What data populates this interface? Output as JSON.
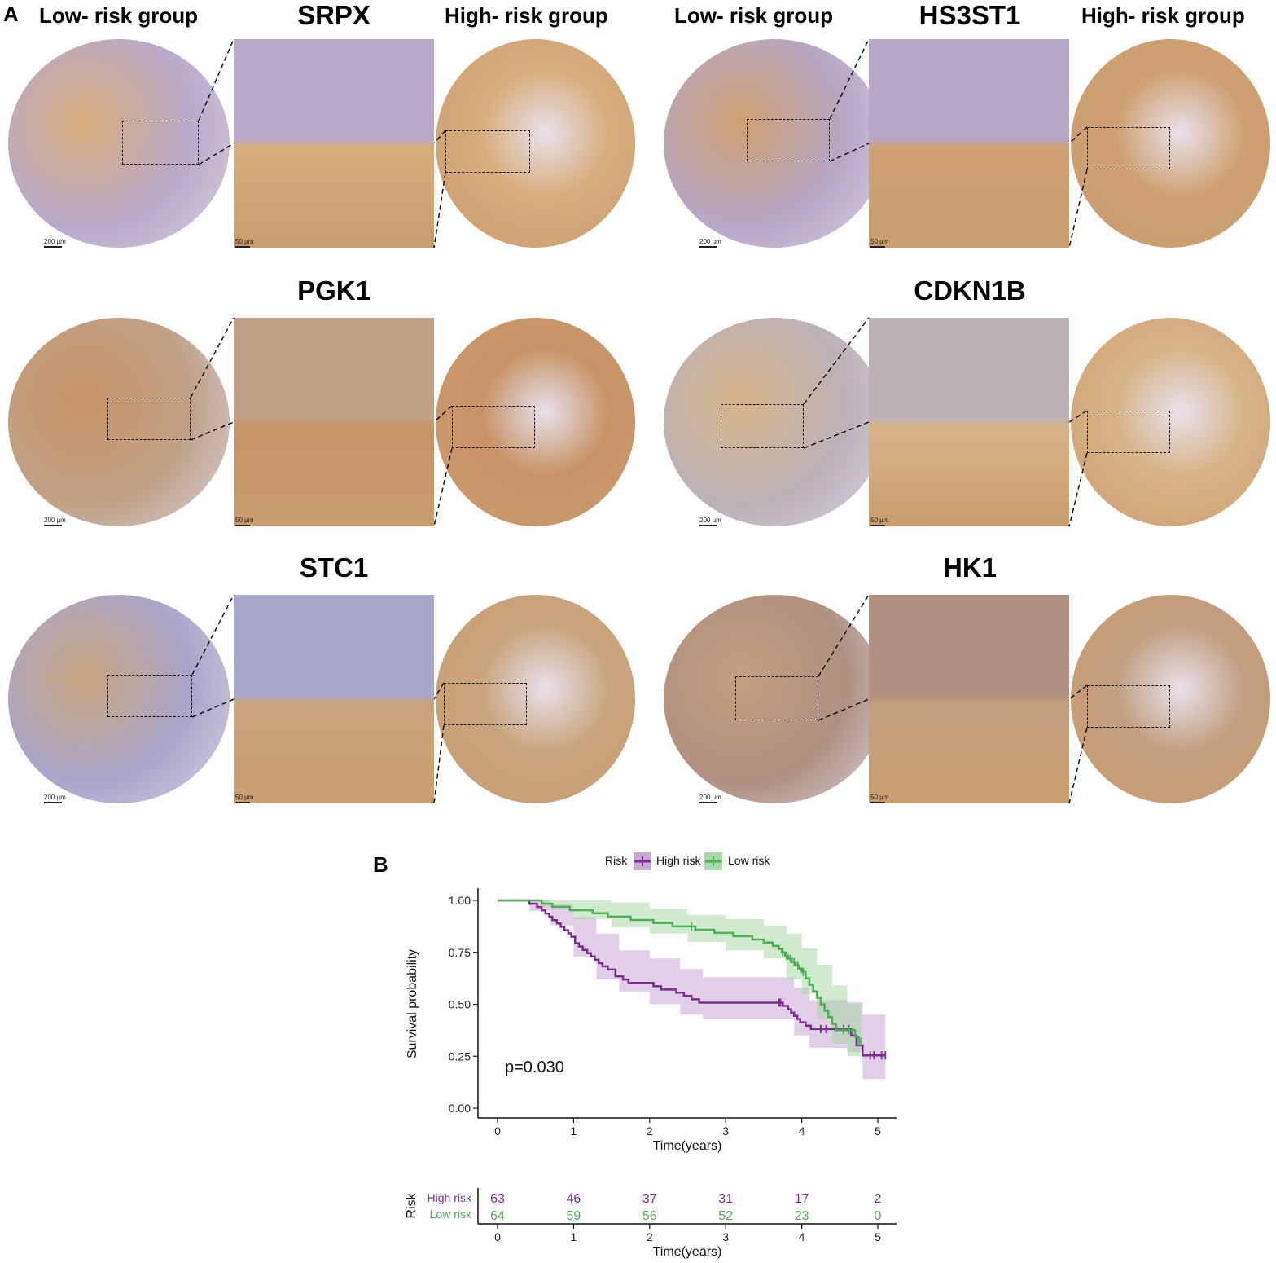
{
  "panel_a": {
    "letter": "A",
    "low_label": "Low- risk group",
    "high_label": "High- risk group",
    "genes": [
      "SRPX",
      "HS3ST1",
      "PGK1",
      "CDKN1B",
      "STC1",
      "HK1"
    ],
    "scale_low": "200 µm",
    "scale_zoom": "50 µm",
    "colors": {
      "tissue": "#c99d6e",
      "stroma": "#e8e1ec",
      "hematoxylin": "#8f94c4",
      "dab_dark": "#8a5228"
    }
  },
  "panel_b": {
    "letter": "B",
    "legend_title": "Risk",
    "pvalue_text": "p=0.030",
    "risk_table_title": "Risk"
  },
  "chart_data": {
    "type": "line",
    "subtype": "kaplan-meier",
    "xlabel": "Time(years)",
    "ylabel": "Survival probability",
    "xlim": [
      0,
      5
    ],
    "ylim": [
      0,
      1
    ],
    "x_ticks": [
      "0",
      "1",
      "2",
      "3",
      "4",
      "5"
    ],
    "y_ticks": [
      "0.00",
      "0.25",
      "0.50",
      "0.75",
      "1.00"
    ],
    "legend_position": "top",
    "series": [
      {
        "name": "High risk",
        "color": "#7b2d8e",
        "band_color": "#c9a8d4",
        "steps": [
          [
            0,
            1.0
          ],
          [
            0.42,
            0.984
          ],
          [
            0.52,
            0.968
          ],
          [
            0.58,
            0.952
          ],
          [
            0.63,
            0.937
          ],
          [
            0.68,
            0.921
          ],
          [
            0.72,
            0.905
          ],
          [
            0.78,
            0.889
          ],
          [
            0.83,
            0.873
          ],
          [
            0.88,
            0.857
          ],
          [
            0.93,
            0.841
          ],
          [
            0.97,
            0.825
          ],
          [
            1.02,
            0.794
          ],
          [
            1.07,
            0.778
          ],
          [
            1.12,
            0.762
          ],
          [
            1.18,
            0.746
          ],
          [
            1.23,
            0.73
          ],
          [
            1.28,
            0.714
          ],
          [
            1.33,
            0.698
          ],
          [
            1.38,
            0.683
          ],
          [
            1.45,
            0.667
          ],
          [
            1.55,
            0.635
          ],
          [
            1.65,
            0.619
          ],
          [
            1.72,
            0.603
          ],
          [
            2.05,
            0.587
          ],
          [
            2.15,
            0.571
          ],
          [
            2.35,
            0.556
          ],
          [
            2.45,
            0.54
          ],
          [
            2.55,
            0.524
          ],
          [
            2.65,
            0.508
          ],
          [
            3.6,
            0.508
          ],
          [
            3.75,
            0.492
          ],
          [
            3.82,
            0.476
          ],
          [
            3.86,
            0.46
          ],
          [
            3.9,
            0.444
          ],
          [
            3.94,
            0.429
          ],
          [
            3.98,
            0.413
          ],
          [
            4.05,
            0.397
          ],
          [
            4.12,
            0.381
          ],
          [
            4.6,
            0.381
          ],
          [
            4.65,
            0.349
          ],
          [
            4.72,
            0.302
          ],
          [
            4.8,
            0.254
          ],
          [
            5.1,
            0.254
          ]
        ],
        "lower": [
          [
            0,
            1.0
          ],
          [
            0.42,
            0.95
          ],
          [
            0.7,
            0.88
          ],
          [
            1.0,
            0.73
          ],
          [
            1.3,
            0.62
          ],
          [
            1.6,
            0.56
          ],
          [
            2.0,
            0.5
          ],
          [
            2.4,
            0.45
          ],
          [
            2.7,
            0.43
          ],
          [
            3.6,
            0.43
          ],
          [
            3.9,
            0.35
          ],
          [
            4.1,
            0.29
          ],
          [
            4.6,
            0.27
          ],
          [
            4.8,
            0.14
          ],
          [
            5.1,
            0.14
          ]
        ],
        "upper": [
          [
            0,
            1.0
          ],
          [
            0.42,
            1.0
          ],
          [
            0.7,
            0.98
          ],
          [
            1.0,
            0.92
          ],
          [
            1.3,
            0.84
          ],
          [
            1.6,
            0.76
          ],
          [
            2.0,
            0.72
          ],
          [
            2.4,
            0.67
          ],
          [
            2.7,
            0.63
          ],
          [
            3.6,
            0.63
          ],
          [
            3.9,
            0.58
          ],
          [
            4.1,
            0.52
          ],
          [
            4.6,
            0.51
          ],
          [
            4.8,
            0.45
          ],
          [
            5.1,
            0.45
          ]
        ],
        "censor": [
          3.7,
          3.72,
          4.25,
          4.32,
          4.55,
          4.62,
          4.9,
          4.95,
          5.05,
          5.1
        ],
        "at_risk": [
          63,
          46,
          37,
          31,
          17,
          2
        ]
      },
      {
        "name": "Low risk",
        "color": "#4caf50",
        "band_color": "#a8d8a8",
        "steps": [
          [
            0,
            1.0
          ],
          [
            0.58,
            0.984
          ],
          [
            0.72,
            0.969
          ],
          [
            0.95,
            0.953
          ],
          [
            1.25,
            0.938
          ],
          [
            1.45,
            0.922
          ],
          [
            1.75,
            0.906
          ],
          [
            2.05,
            0.891
          ],
          [
            2.3,
            0.875
          ],
          [
            2.6,
            0.859
          ],
          [
            2.85,
            0.844
          ],
          [
            3.1,
            0.828
          ],
          [
            3.35,
            0.812
          ],
          [
            3.5,
            0.797
          ],
          [
            3.62,
            0.781
          ],
          [
            3.7,
            0.766
          ],
          [
            3.74,
            0.75
          ],
          [
            3.78,
            0.734
          ],
          [
            3.82,
            0.719
          ],
          [
            3.87,
            0.703
          ],
          [
            3.92,
            0.688
          ],
          [
            3.96,
            0.672
          ],
          [
            4.0,
            0.656
          ],
          [
            4.05,
            0.625
          ],
          [
            4.1,
            0.594
          ],
          [
            4.15,
            0.562
          ],
          [
            4.2,
            0.531
          ],
          [
            4.25,
            0.5
          ],
          [
            4.3,
            0.469
          ],
          [
            4.35,
            0.438
          ],
          [
            4.4,
            0.406
          ],
          [
            4.45,
            0.375
          ],
          [
            4.65,
            0.375
          ],
          [
            4.7,
            0.344
          ],
          [
            4.75,
            0.32
          ],
          [
            4.78,
            0.32
          ]
        ],
        "lower": [
          [
            0,
            1.0
          ],
          [
            0.6,
            0.97
          ],
          [
            1.0,
            0.91
          ],
          [
            1.5,
            0.87
          ],
          [
            2.0,
            0.84
          ],
          [
            2.5,
            0.8
          ],
          [
            3.0,
            0.76
          ],
          [
            3.5,
            0.72
          ],
          [
            3.8,
            0.62
          ],
          [
            4.0,
            0.55
          ],
          [
            4.2,
            0.43
          ],
          [
            4.4,
            0.31
          ],
          [
            4.6,
            0.25
          ],
          [
            4.78,
            0.22
          ]
        ],
        "upper": [
          [
            0,
            1.0
          ],
          [
            0.6,
            1.0
          ],
          [
            1.0,
            1.0
          ],
          [
            1.5,
            0.99
          ],
          [
            2.0,
            0.96
          ],
          [
            2.5,
            0.93
          ],
          [
            3.0,
            0.91
          ],
          [
            3.5,
            0.88
          ],
          [
            3.8,
            0.84
          ],
          [
            4.0,
            0.77
          ],
          [
            4.2,
            0.69
          ],
          [
            4.4,
            0.59
          ],
          [
            4.6,
            0.5
          ],
          [
            4.78,
            0.47
          ]
        ],
        "censor": [
          2.55,
          3.75,
          3.8,
          3.85,
          3.9,
          3.95,
          4.02,
          4.55,
          4.62,
          4.75,
          4.78
        ],
        "at_risk": [
          64,
          59,
          56,
          52,
          23,
          0
        ]
      }
    ]
  }
}
